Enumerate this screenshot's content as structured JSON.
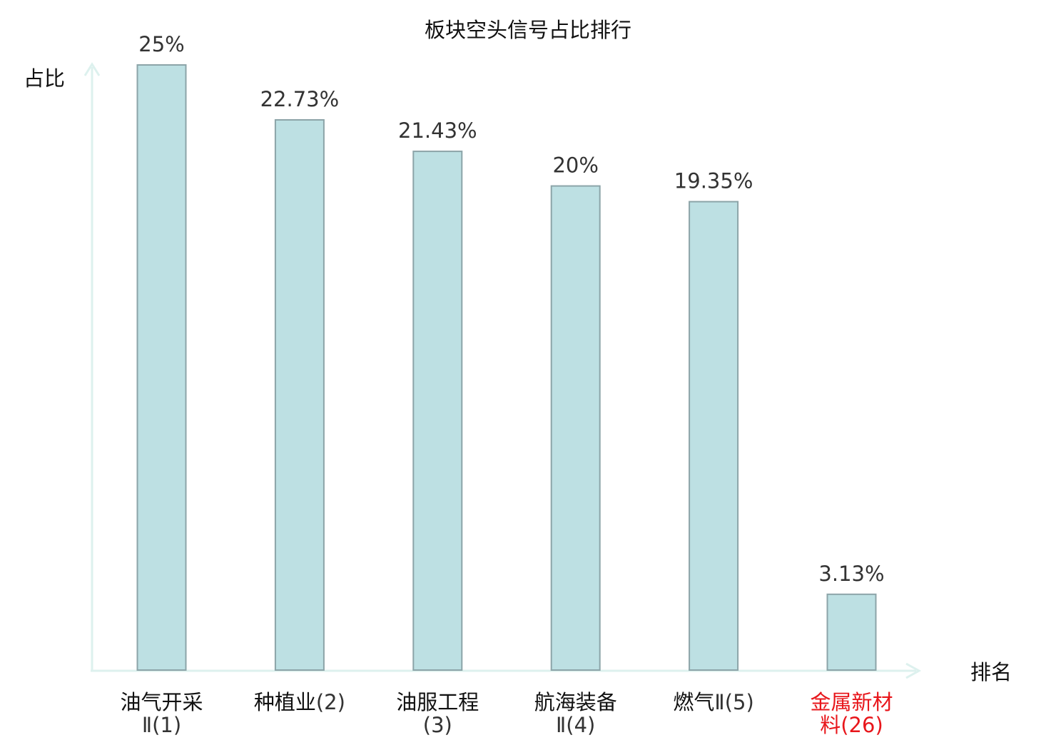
{
  "chart_data": {
    "type": "bar",
    "title": "板块空头信号占比排行",
    "ylabel": "占比",
    "xlabel": "排名",
    "ylim": [
      0,
      25
    ],
    "grid": false,
    "legend": "none",
    "categories": [
      {
        "name": "油气开采",
        "rank": "Ⅱ(1)"
      },
      {
        "name": "种植业",
        "rank": "(2)"
      },
      {
        "name": "油服工程",
        "rank": "(3)"
      },
      {
        "name": "航海装备",
        "rank": "Ⅱ(4)"
      },
      {
        "name": "燃气",
        "rank": "Ⅱ(5)"
      },
      {
        "name": "金属新材",
        "rank": "料(26)"
      }
    ],
    "highlight_index": 5,
    "values": [
      25,
      22.73,
      21.43,
      20,
      19.35,
      3.13
    ],
    "value_labels": [
      "25%",
      "22.73%",
      "21.43%",
      "20%",
      "19.35%",
      "3.13%"
    ]
  },
  "colors": {
    "bar_fill": "#bde0e3",
    "bar_stroke": "#8ca4a8",
    "axis": "#ddf1ee",
    "text": "#333333",
    "label_text": "#111111",
    "highlight": "#e8161b"
  }
}
